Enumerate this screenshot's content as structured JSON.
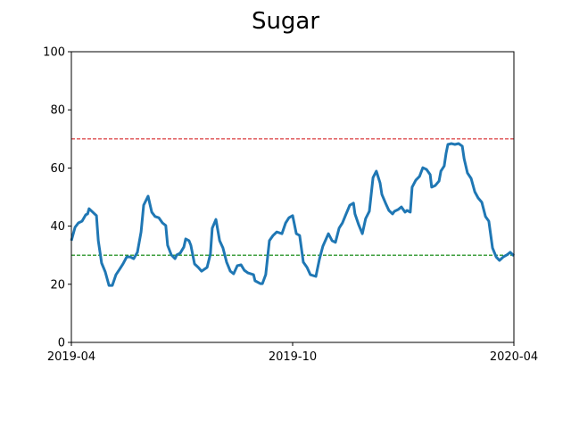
{
  "chart_data": {
    "type": "line",
    "title": "Sugar",
    "x": [
      0.0,
      0.1,
      0.19,
      0.29,
      0.39,
      0.44,
      0.48,
      0.58,
      0.68,
      0.73,
      0.82,
      0.92,
      1.02,
      1.11,
      1.21,
      1.31,
      1.4,
      1.5,
      1.6,
      1.69,
      1.79,
      1.89,
      1.96,
      2.08,
      2.18,
      2.27,
      2.37,
      2.47,
      2.56,
      2.61,
      2.71,
      2.81,
      2.86,
      2.95,
      3.05,
      3.1,
      3.19,
      3.24,
      3.34,
      3.44,
      3.53,
      3.68,
      3.77,
      3.82,
      3.92,
      4.02,
      4.11,
      4.21,
      4.31,
      4.4,
      4.5,
      4.6,
      4.69,
      4.79,
      4.94,
      4.98,
      5.13,
      5.18,
      5.27,
      5.37,
      5.47,
      5.57,
      5.71,
      5.81,
      5.9,
      6.0,
      6.1,
      6.19,
      6.29,
      6.39,
      6.48,
      6.63,
      6.73,
      6.82,
      6.97,
      7.07,
      7.16,
      7.26,
      7.35,
      7.45,
      7.55,
      7.65,
      7.69,
      7.79,
      7.89,
      7.98,
      8.08,
      8.18,
      8.27,
      8.37,
      8.42,
      8.52,
      8.61,
      8.71,
      8.76,
      8.86,
      8.95,
      9.05,
      9.1,
      9.19,
      9.24,
      9.34,
      9.44,
      9.53,
      9.63,
      9.73,
      9.77,
      9.87,
      9.97,
      10.02,
      10.11,
      10.16,
      10.21,
      10.31,
      10.4,
      10.5,
      10.6,
      10.65,
      10.74,
      10.84,
      10.94,
      11.03,
      11.13,
      11.23,
      11.32,
      11.42,
      11.52,
      11.61,
      11.71,
      11.81,
      11.9,
      12.0
    ],
    "values": [
      35.0,
      39.6,
      41.1,
      41.7,
      43.9,
      44.2,
      46.0,
      44.8,
      43.6,
      35.0,
      27.3,
      24.2,
      19.6,
      19.6,
      23.3,
      25.2,
      27.0,
      29.4,
      29.4,
      28.8,
      31.0,
      38.0,
      47.2,
      50.3,
      44.8,
      43.3,
      42.9,
      41.1,
      40.2,
      33.4,
      30.1,
      28.8,
      30.1,
      30.7,
      32.8,
      35.6,
      35.0,
      33.4,
      27.0,
      25.8,
      24.5,
      25.8,
      30.4,
      39.3,
      42.3,
      35.0,
      32.5,
      27.6,
      24.5,
      23.6,
      26.4,
      26.7,
      24.8,
      23.9,
      23.3,
      21.2,
      20.2,
      20.2,
      23.3,
      35.0,
      36.8,
      38.0,
      37.4,
      41.1,
      42.9,
      43.6,
      37.4,
      36.8,
      27.6,
      25.8,
      23.3,
      22.7,
      28.8,
      33.1,
      37.4,
      35.0,
      34.4,
      39.3,
      41.1,
      44.2,
      47.2,
      47.9,
      44.2,
      40.5,
      37.4,
      42.6,
      45.1,
      56.7,
      58.9,
      54.9,
      50.9,
      47.9,
      45.4,
      44.2,
      45.1,
      45.7,
      46.6,
      44.8,
      45.4,
      44.8,
      53.4,
      55.8,
      57.1,
      60.1,
      59.5,
      57.7,
      53.4,
      54.0,
      55.5,
      58.9,
      60.7,
      65.0,
      68.1,
      68.4,
      68.1,
      68.4,
      67.5,
      63.2,
      58.3,
      56.4,
      51.8,
      49.7,
      48.2,
      43.3,
      41.7,
      32.5,
      29.4,
      28.2,
      29.4,
      30.1,
      31.0,
      29.8
    ],
    "color": "#1f77b4",
    "xlim": [
      0,
      12
    ],
    "xticks": [
      {
        "value": 0,
        "label": "2019-04"
      },
      {
        "value": 6,
        "label": "2019-10"
      },
      {
        "value": 12,
        "label": "2020-04"
      }
    ],
    "ylim": [
      0,
      100
    ],
    "yticks": [
      0,
      20,
      40,
      60,
      80,
      100
    ],
    "hlines": [
      {
        "value": 70,
        "color": "#d62728"
      },
      {
        "value": 30,
        "color": "#008000"
      }
    ]
  }
}
